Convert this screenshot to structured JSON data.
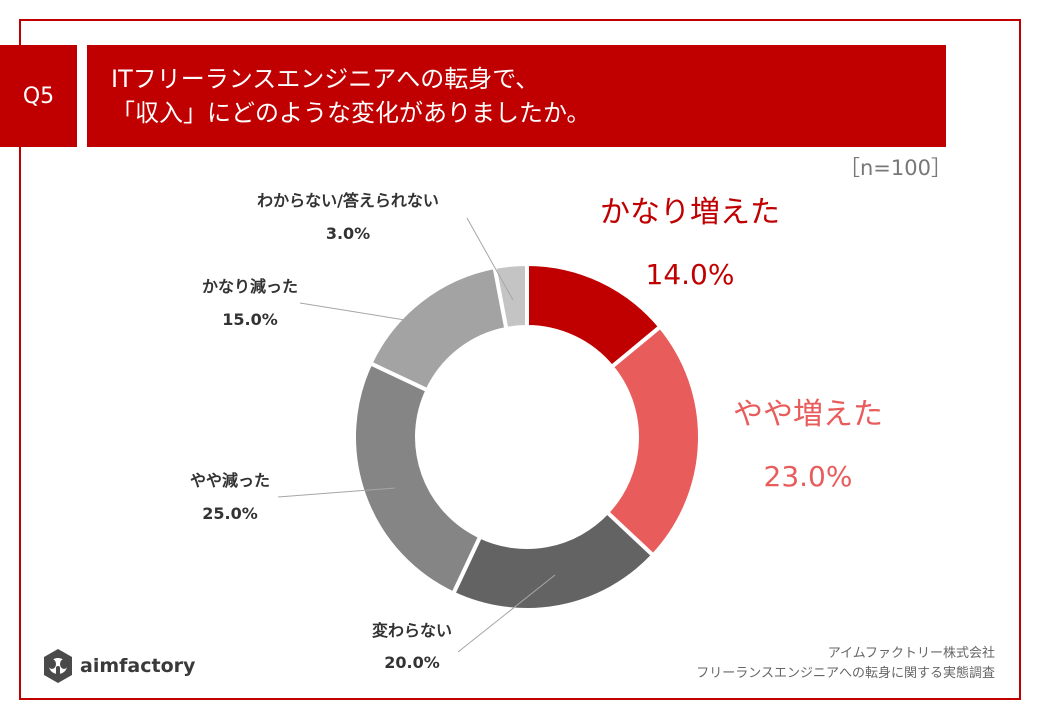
{
  "header": {
    "badge": "Q5",
    "title_line1": "ITフリーランスエンジニアへの転身で、",
    "title_line2": "「収入」にどのような変化がありましたか。",
    "sample_size": "［n=100］"
  },
  "colors": {
    "accent": "#c00000"
  },
  "chart_data": {
    "type": "pie",
    "style": "donut",
    "categories": [
      "かなり増えた",
      "やや増えた",
      "変わらない",
      "やや減った",
      "かなり減った",
      "わからない/答えられない"
    ],
    "values": [
      14.0,
      23.0,
      20.0,
      25.0,
      15.0,
      3.0
    ],
    "value_labels": [
      "14.0%",
      "23.0%",
      "20.0%",
      "25.0%",
      "15.0%",
      "3.0%"
    ],
    "colors": [
      "#c00000",
      "#e85c5c",
      "#636363",
      "#858585",
      "#a3a3a3",
      "#c4c4c4"
    ],
    "start": "12 o'clock",
    "direction": "clockwise"
  },
  "footer": {
    "company": "アイムファクトリー株式会社",
    "survey": "フリーランスエンジニアへの転身に関する実態調査",
    "logo_text": "aimfactory"
  }
}
